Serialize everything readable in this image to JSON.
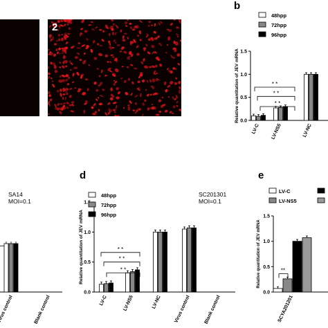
{
  "panels": {
    "a_right_label": "2",
    "b_letter": "b",
    "d_letter": "d",
    "e_letter": "e"
  },
  "annotations": {
    "c_strain": "SA14",
    "c_moi": "MOI=0.1",
    "d_strain": "SC201301",
    "d_moi": "MOI=0.1"
  },
  "legend": {
    "b": [
      "48hpp",
      "72hpp",
      "96hpp"
    ],
    "d": [
      "48hpp",
      "72hpp",
      "96hpp"
    ],
    "e": [
      "LV-C",
      "LV-NS5"
    ]
  },
  "colors": {
    "48hpp": "#ffffff",
    "72hpp": "#888888",
    "96hpp": "#000000",
    "micro_red": "#e0141b"
  },
  "chart_data": [
    {
      "id": "b",
      "type": "bar",
      "ylabel": "Relative quantitation of JEV mRNA",
      "ylim": [
        0,
        1.5
      ],
      "yticks": [
        "0.0",
        "0.5",
        "1.0",
        "1.5"
      ],
      "categories": [
        "LV-C",
        "LV-NS5",
        "LV-NC"
      ],
      "series": [
        {
          "name": "48hpp",
          "values": [
            0.1,
            0.27,
            1.0
          ]
        },
        {
          "name": "72hpp",
          "values": [
            0.09,
            0.28,
            1.0
          ]
        },
        {
          "name": "96hpp",
          "values": [
            0.11,
            0.3,
            1.0
          ]
        }
      ],
      "significance": [
        "* *",
        "* *",
        "* *"
      ]
    },
    {
      "id": "c",
      "type": "bar",
      "categories": [
        "Virus control",
        "Blank control"
      ],
      "series": [
        {
          "name": "48hpp",
          "values": [
            1.05,
            0
          ]
        },
        {
          "name": "72hpp",
          "values": [
            1.05,
            0
          ]
        },
        {
          "name": "96hpp",
          "values": [
            1.05,
            0
          ]
        }
      ]
    },
    {
      "id": "d",
      "type": "bar",
      "ylabel": "Relative quantitation of JEV mRNA",
      "ylim": [
        0,
        1.5
      ],
      "yticks": [
        "0.0",
        "0.5",
        "1.0",
        "1.5"
      ],
      "categories": [
        "LV-C",
        "LV-NS5",
        "LV-NC",
        "Virus control",
        "Blank control"
      ],
      "series": [
        {
          "name": "48hpp",
          "values": [
            0.13,
            0.32,
            1.0,
            1.05,
            0
          ]
        },
        {
          "name": "72hpp",
          "values": [
            0.14,
            0.34,
            1.0,
            1.07,
            0
          ]
        },
        {
          "name": "96hpp",
          "values": [
            0.15,
            0.37,
            1.0,
            1.07,
            0
          ]
        }
      ],
      "significance": [
        "* *",
        "* *",
        "* *"
      ]
    },
    {
      "id": "e",
      "type": "bar",
      "ylabel": "Relative quantitation of JEV mRNA",
      "ylim": [
        0,
        1.5
      ],
      "yticks": [
        "0.0",
        "0.5",
        "1.0",
        "1.5"
      ],
      "categories": [
        "SCYA201201"
      ],
      "series": [
        {
          "name": "LV-C",
          "values": [
            0.07
          ]
        },
        {
          "name": "LV-NS5",
          "values": [
            0.26
          ]
        },
        {
          "name": "",
          "values": [
            1.0
          ]
        },
        {
          "name": "",
          "values": [
            1.07
          ]
        }
      ],
      "significance": [
        "**"
      ]
    }
  ]
}
